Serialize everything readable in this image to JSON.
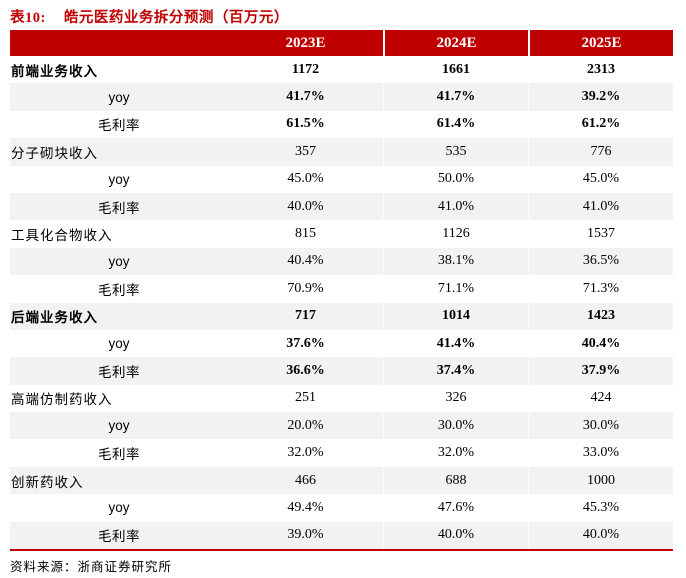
{
  "title": {
    "tag": "表10:",
    "text": "皓元医药业务拆分预测（百万元）"
  },
  "colors": {
    "accent_red": "#C00000",
    "stripe_gray": "#F2F2F2",
    "header_text": "#FFFFFF"
  },
  "table": {
    "columns": [
      "2023E",
      "2024E",
      "2025E"
    ],
    "rows": [
      {
        "label": "前端业务收入",
        "values": [
          "1172",
          "1661",
          "2313"
        ]
      },
      {
        "label": "yoy",
        "values": [
          "41.7%",
          "41.7%",
          "39.2%"
        ]
      },
      {
        "label": "毛利率",
        "values": [
          "61.5%",
          "61.4%",
          "61.2%"
        ]
      },
      {
        "label": "分子砌块收入",
        "values": [
          "357",
          "535",
          "776"
        ]
      },
      {
        "label": "yoy",
        "values": [
          "45.0%",
          "50.0%",
          "45.0%"
        ]
      },
      {
        "label": "毛利率",
        "values": [
          "40.0%",
          "41.0%",
          "41.0%"
        ]
      },
      {
        "label": "工具化合物收入",
        "values": [
          "815",
          "1126",
          "1537"
        ]
      },
      {
        "label": "yoy",
        "values": [
          "40.4%",
          "38.1%",
          "36.5%"
        ]
      },
      {
        "label": "毛利率",
        "values": [
          "70.9%",
          "71.1%",
          "71.3%"
        ]
      },
      {
        "label": "后端业务收入",
        "values": [
          "717",
          "1014",
          "1423"
        ]
      },
      {
        "label": "yoy",
        "values": [
          "37.6%",
          "41.4%",
          "40.4%"
        ]
      },
      {
        "label": "毛利率",
        "values": [
          "36.6%",
          "37.4%",
          "37.9%"
        ]
      },
      {
        "label": "高端仿制药收入",
        "values": [
          "251",
          "326",
          "424"
        ]
      },
      {
        "label": "yoy",
        "values": [
          "20.0%",
          "30.0%",
          "30.0%"
        ]
      },
      {
        "label": "毛利率",
        "values": [
          "32.0%",
          "32.0%",
          "33.0%"
        ]
      },
      {
        "label": "创新药收入",
        "values": [
          "466",
          "688",
          "1000"
        ]
      },
      {
        "label": "yoy",
        "values": [
          "49.4%",
          "47.6%",
          "45.3%"
        ]
      },
      {
        "label": "毛利率",
        "values": [
          "39.0%",
          "40.0%",
          "40.0%"
        ]
      }
    ]
  },
  "footer": {
    "source_label": "资料来源：",
    "source_text": "浙商证券研究所"
  }
}
